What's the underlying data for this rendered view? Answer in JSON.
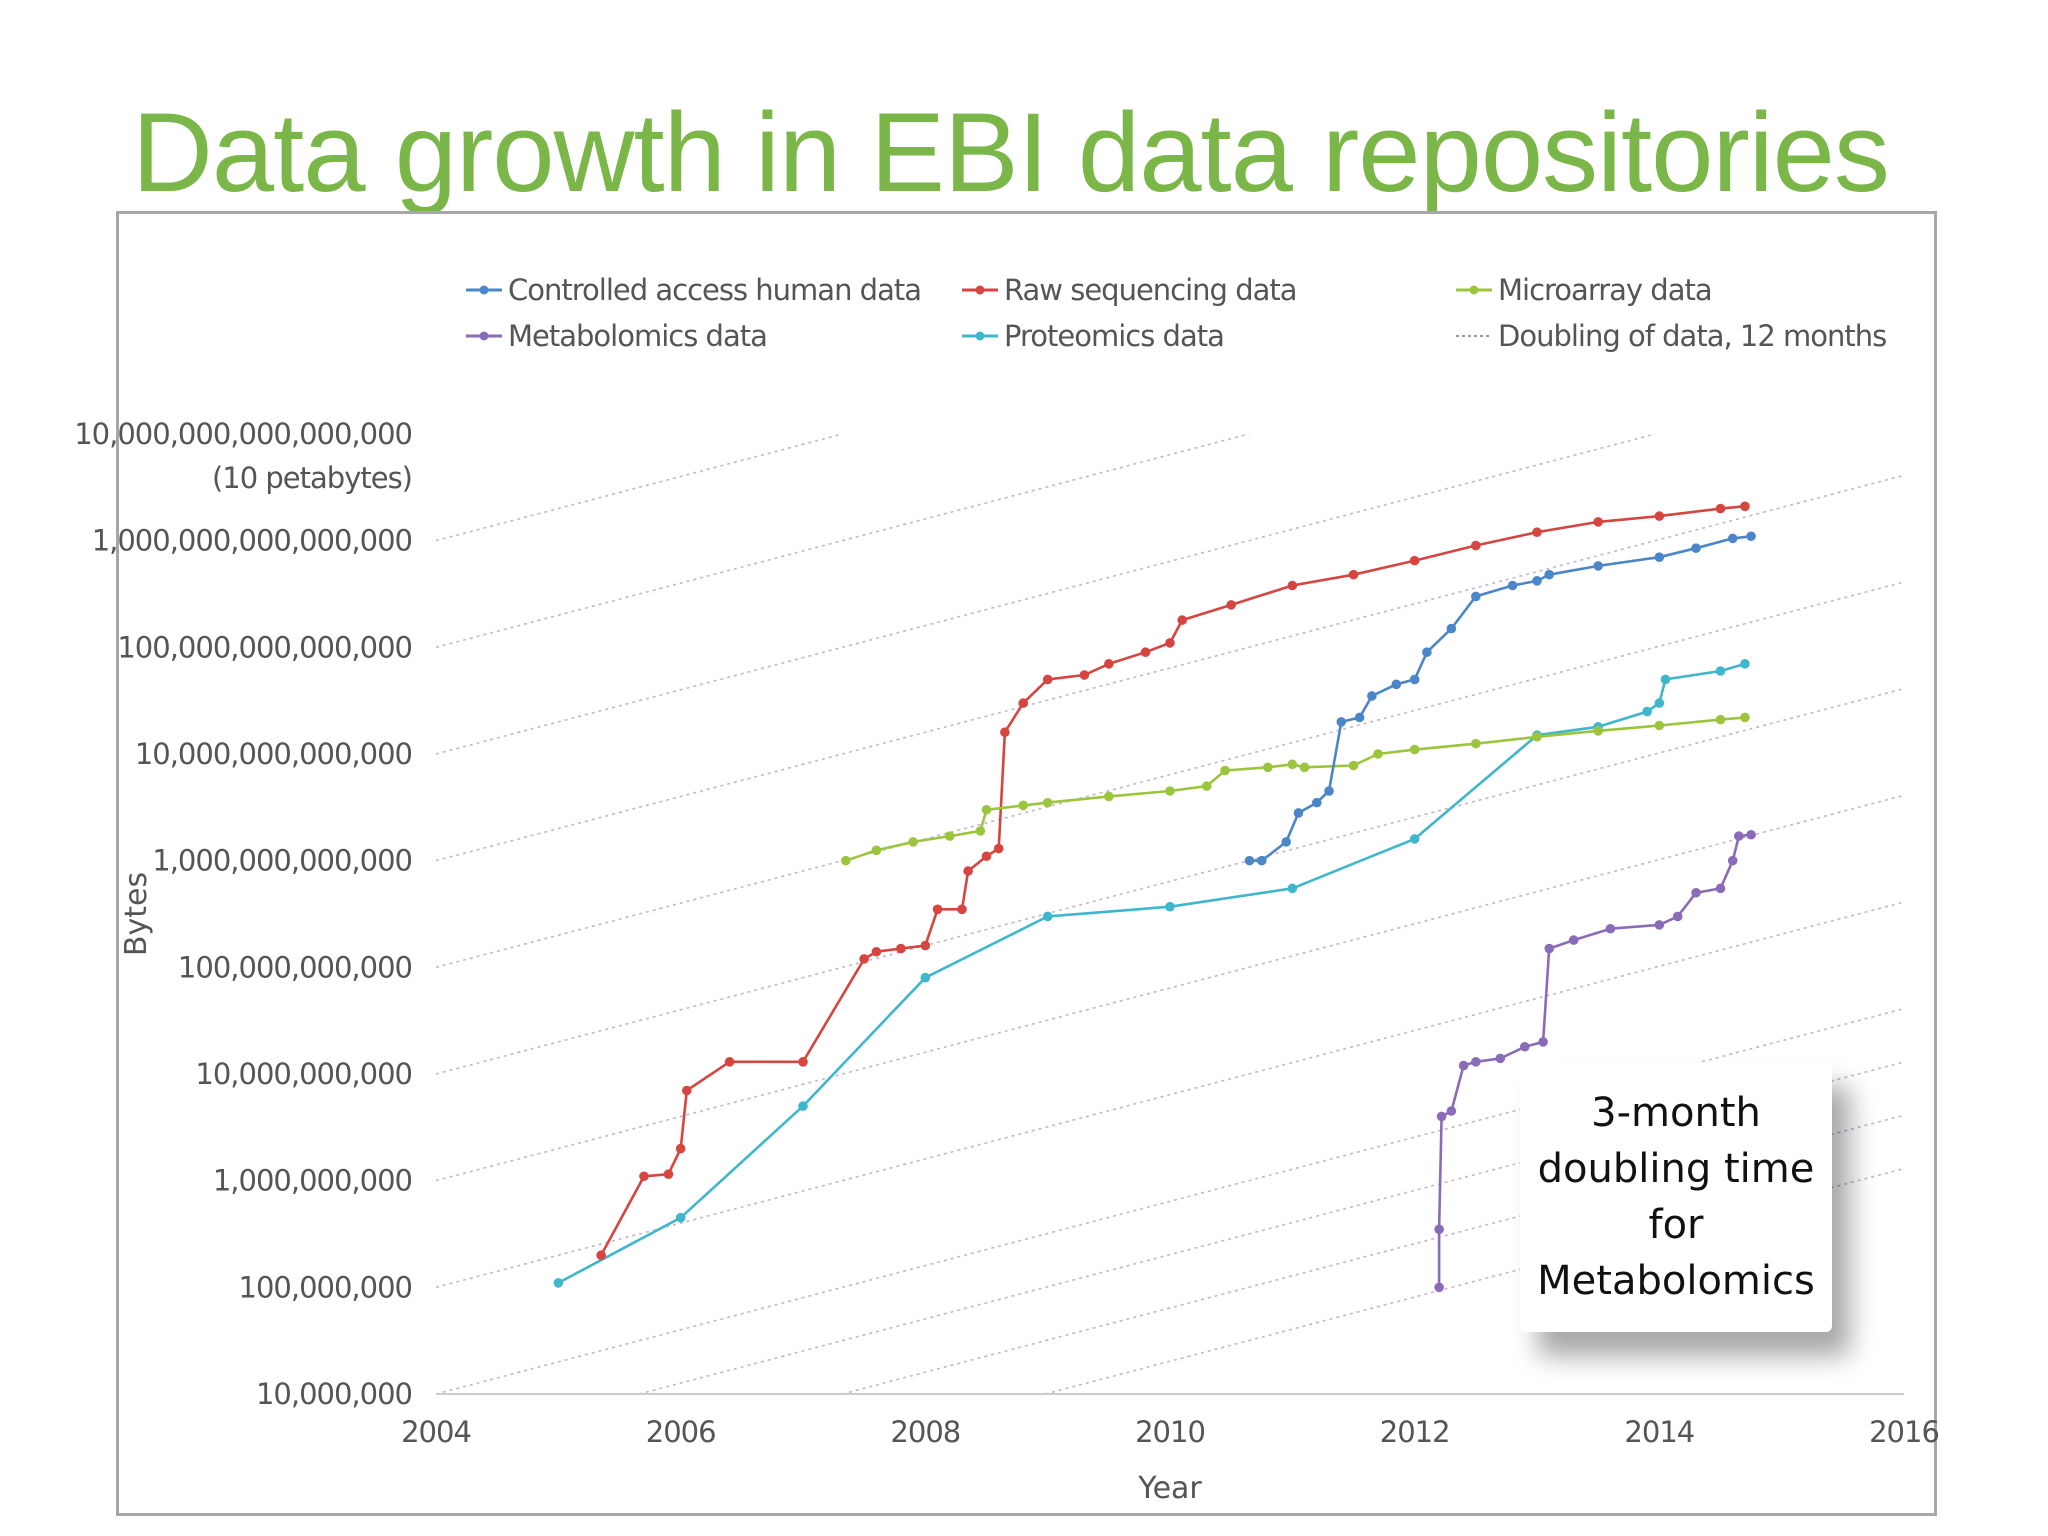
{
  "slide": {
    "title": "Data growth in EBI data repositories"
  },
  "callout": {
    "lines": [
      "3-month",
      "doubling time",
      "for",
      "Metabolomics"
    ]
  },
  "colors": {
    "title": "#7ab648",
    "controlled": "#4a86c8",
    "raw": "#d6453f",
    "microarray": "#9bc53d",
    "metabolomics": "#8a6bb8",
    "proteomics": "#3fb6cc",
    "doubling": "#c4b4cc",
    "axis_text": "#555555"
  },
  "chart_data": {
    "type": "line",
    "title": "",
    "xlabel": "Year",
    "ylabel": "Bytes",
    "x_scale": "linear",
    "y_scale": "log",
    "xlim": [
      2004,
      2016
    ],
    "ylim": [
      10000000,
      10000000000000000
    ],
    "x_ticks": [
      "2004",
      "2006",
      "2008",
      "2010",
      "2012",
      "2014",
      "2016"
    ],
    "y_ticks": [
      {
        "value": 10000000,
        "label": "10,000,000"
      },
      {
        "value": 100000000,
        "label": "100,000,000"
      },
      {
        "value": 1000000000,
        "label": "1,000,000,000"
      },
      {
        "value": 10000000000,
        "label": "10,000,000,000"
      },
      {
        "value": 100000000000,
        "label": "100,000,000,000"
      },
      {
        "value": 1000000000000,
        "label": "1,000,000,000,000"
      },
      {
        "value": 10000000000000,
        "label": "10,000,000,000,000"
      },
      {
        "value": 100000000000000,
        "label": "100,000,000,000,000"
      },
      {
        "value": 1000000000000000,
        "label": "1,000,000,000,000,000"
      },
      {
        "value": 10000000000000000,
        "label": "10,000,000,000,000,000",
        "sublabel": "(10 petabytes)"
      }
    ],
    "legend": [
      {
        "name": "Controlled access human data",
        "key": "controlled",
        "style": "line-marker"
      },
      {
        "name": "Raw sequencing data",
        "key": "raw",
        "style": "line-marker"
      },
      {
        "name": "Microarray data",
        "key": "microarray",
        "style": "line-marker"
      },
      {
        "name": "Metabolomics data",
        "key": "metabolomics",
        "style": "line-marker"
      },
      {
        "name": "Proteomics data",
        "key": "proteomics",
        "style": "line-marker"
      },
      {
        "name": "Doubling of data, 12 months",
        "key": "doubling",
        "style": "dotted"
      }
    ],
    "legend_position": "top",
    "doubling_reference": {
      "name": "Doubling of data, 12 months",
      "doubling_period_years": 1,
      "start_log10_values": [
        7,
        8,
        9,
        10,
        11,
        12,
        13,
        14,
        15
      ],
      "start_years": [
        2004,
        2005.66,
        2007.32,
        2008.98
      ]
    },
    "series": [
      {
        "name": "Raw sequencing data",
        "key": "raw",
        "points": [
          [
            2005.35,
            200000000
          ],
          [
            2005.7,
            1100000000
          ],
          [
            2005.9,
            1150000000
          ],
          [
            2006.0,
            2000000000
          ],
          [
            2006.05,
            7000000000
          ],
          [
            2006.4,
            13000000000
          ],
          [
            2007.0,
            13000000000
          ],
          [
            2007.5,
            120000000000
          ],
          [
            2007.6,
            140000000000
          ],
          [
            2007.8,
            150000000000
          ],
          [
            2008.0,
            160000000000
          ],
          [
            2008.1,
            350000000000
          ],
          [
            2008.3,
            350000000000
          ],
          [
            2008.35,
            800000000000
          ],
          [
            2008.5,
            1100000000000
          ],
          [
            2008.6,
            1300000000000
          ],
          [
            2008.65,
            16000000000000
          ],
          [
            2008.8,
            30000000000000
          ],
          [
            2009.0,
            50000000000000
          ],
          [
            2009.3,
            55000000000000
          ],
          [
            2009.5,
            70000000000000
          ],
          [
            2009.8,
            90000000000000
          ],
          [
            2010.0,
            110000000000000
          ],
          [
            2010.1,
            180000000000000
          ],
          [
            2010.5,
            250000000000000
          ],
          [
            2011.0,
            380000000000000
          ],
          [
            2011.5,
            480000000000000
          ],
          [
            2012.0,
            650000000000000
          ],
          [
            2012.5,
            900000000000000
          ],
          [
            2013.0,
            1200000000000000
          ],
          [
            2013.5,
            1500000000000000
          ],
          [
            2014.0,
            1700000000000000
          ],
          [
            2014.5,
            2000000000000000
          ],
          [
            2014.7,
            2100000000000000
          ]
        ]
      },
      {
        "name": "Controlled access human data",
        "key": "controlled",
        "points": [
          [
            2010.65,
            1000000000000
          ],
          [
            2010.75,
            1000000000000
          ],
          [
            2010.95,
            1500000000000
          ],
          [
            2011.05,
            2800000000000
          ],
          [
            2011.2,
            3500000000000
          ],
          [
            2011.3,
            4500000000000
          ],
          [
            2011.4,
            20000000000000
          ],
          [
            2011.55,
            22000000000000
          ],
          [
            2011.65,
            35000000000000
          ],
          [
            2011.85,
            45000000000000
          ],
          [
            2012.0,
            50000000000000
          ],
          [
            2012.1,
            90000000000000
          ],
          [
            2012.3,
            150000000000000
          ],
          [
            2012.5,
            300000000000000
          ],
          [
            2012.8,
            380000000000000
          ],
          [
            2013.0,
            420000000000000
          ],
          [
            2013.1,
            480000000000000
          ],
          [
            2013.5,
            580000000000000
          ],
          [
            2014.0,
            700000000000000
          ],
          [
            2014.3,
            850000000000000
          ],
          [
            2014.6,
            1050000000000000
          ],
          [
            2014.75,
            1100000000000000
          ]
        ]
      },
      {
        "name": "Microarray data",
        "key": "microarray",
        "points": [
          [
            2007.35,
            1000000000000
          ],
          [
            2007.6,
            1250000000000
          ],
          [
            2007.9,
            1500000000000
          ],
          [
            2008.2,
            1700000000000
          ],
          [
            2008.45,
            1900000000000
          ],
          [
            2008.5,
            3000000000000
          ],
          [
            2008.8,
            3300000000000
          ],
          [
            2009.0,
            3500000000000
          ],
          [
            2009.5,
            4000000000000
          ],
          [
            2010.0,
            4500000000000
          ],
          [
            2010.3,
            5000000000000
          ],
          [
            2010.45,
            7000000000000
          ],
          [
            2010.8,
            7500000000000
          ],
          [
            2011.0,
            8000000000000
          ],
          [
            2011.1,
            7500000000000
          ],
          [
            2011.5,
            7800000000000
          ],
          [
            2011.7,
            10000000000000
          ],
          [
            2012.0,
            11000000000000
          ],
          [
            2012.5,
            12500000000000
          ],
          [
            2013.0,
            14500000000000
          ],
          [
            2013.5,
            16500000000000
          ],
          [
            2014.0,
            18500000000000
          ],
          [
            2014.5,
            21000000000000
          ],
          [
            2014.7,
            22000000000000
          ]
        ]
      },
      {
        "name": "Proteomics data",
        "key": "proteomics",
        "points": [
          [
            2005.0,
            110000000
          ],
          [
            2006.0,
            450000000
          ],
          [
            2007.0,
            5000000000
          ],
          [
            2008.0,
            80000000000
          ],
          [
            2009.0,
            300000000000
          ],
          [
            2010.0,
            370000000000
          ],
          [
            2011.0,
            550000000000
          ],
          [
            2012.0,
            1600000000000
          ],
          [
            2013.0,
            15000000000000
          ],
          [
            2013.5,
            18000000000000
          ],
          [
            2013.9,
            25000000000000
          ],
          [
            2014.0,
            30000000000000
          ],
          [
            2014.05,
            50000000000000
          ],
          [
            2014.5,
            60000000000000
          ],
          [
            2014.7,
            70000000000000
          ]
        ]
      },
      {
        "name": "Metabolomics data",
        "key": "metabolomics",
        "points": [
          [
            2012.2,
            100000000
          ],
          [
            2012.2,
            350000000
          ],
          [
            2012.22,
            4000000000
          ],
          [
            2012.3,
            4500000000
          ],
          [
            2012.4,
            12000000000
          ],
          [
            2012.5,
            13000000000
          ],
          [
            2012.7,
            14000000000
          ],
          [
            2012.9,
            18000000000
          ],
          [
            2013.05,
            20000000000
          ],
          [
            2013.1,
            150000000000
          ],
          [
            2013.3,
            180000000000
          ],
          [
            2013.6,
            230000000000
          ],
          [
            2014.0,
            250000000000
          ],
          [
            2014.15,
            300000000000
          ],
          [
            2014.3,
            500000000000
          ],
          [
            2014.5,
            550000000000
          ],
          [
            2014.6,
            1000000000000
          ],
          [
            2014.65,
            1700000000000
          ],
          [
            2014.75,
            1750000000000
          ]
        ]
      }
    ]
  }
}
